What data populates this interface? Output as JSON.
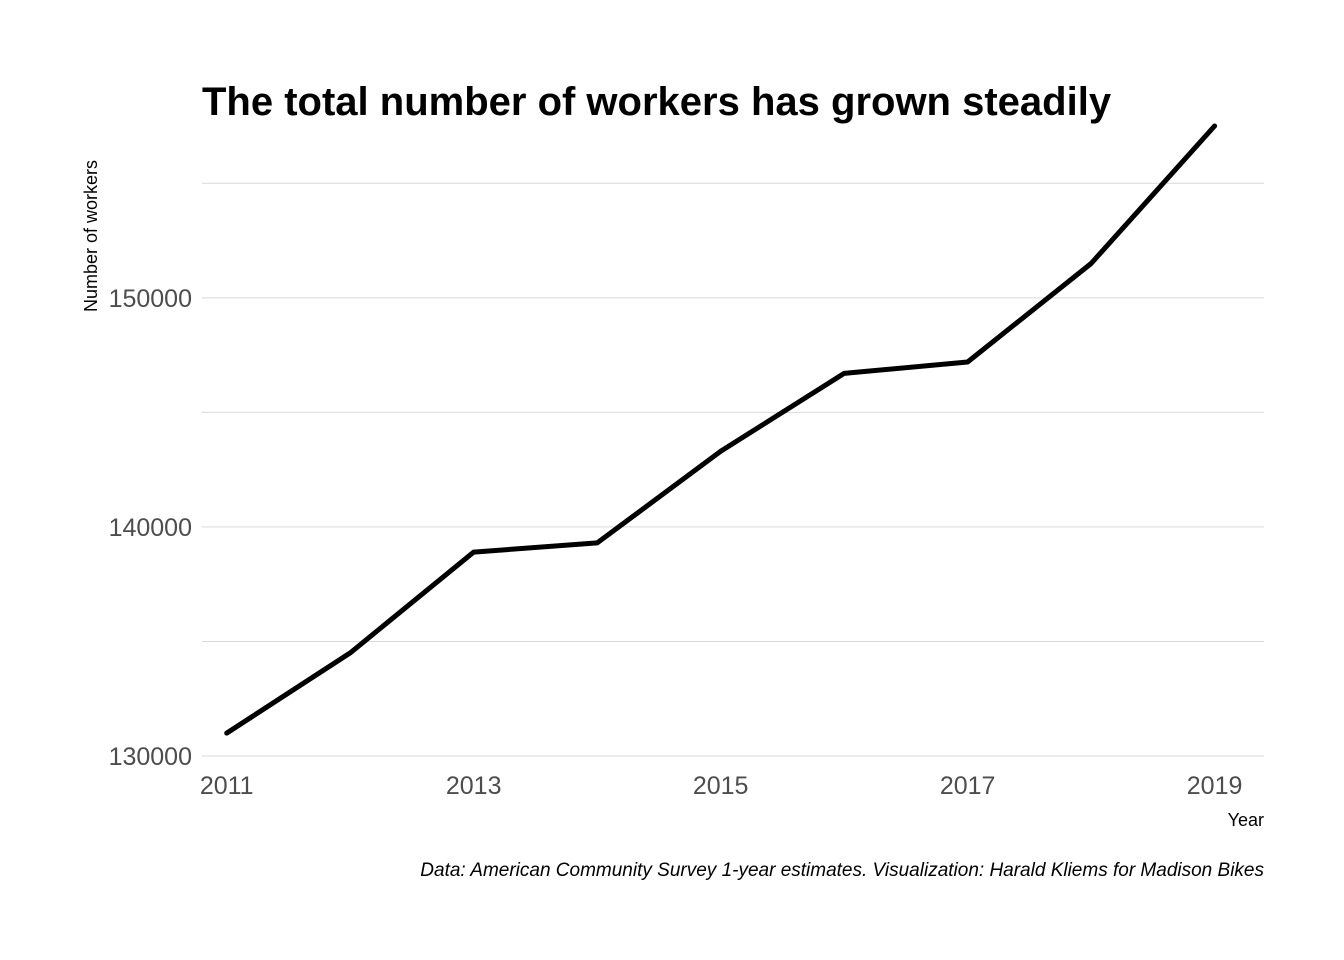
{
  "chart_data": {
    "type": "line",
    "title": "The total number of workers has grown steadily",
    "xlabel": "Year",
    "ylabel": "Number of workers",
    "caption": "Data: American Community Survey 1-year estimates. Visualization: Harald Kliems for Madison Bikes",
    "x": [
      2011,
      2012,
      2013,
      2014,
      2015,
      2016,
      2017,
      2018,
      2019
    ],
    "series": [
      {
        "values": [
          131000,
          134500,
          138900,
          139300,
          143300,
          146700,
          147200,
          151500,
          157500
        ]
      }
    ],
    "xlim": [
      2010.8,
      2019.4
    ],
    "ylim": [
      130000,
      157500
    ],
    "x_ticks": [
      "2011",
      "2013",
      "2015",
      "2017",
      "2019"
    ],
    "y_ticks": [
      "130000",
      "140000",
      "150000"
    ],
    "grid": true,
    "line_color": "#000000"
  }
}
